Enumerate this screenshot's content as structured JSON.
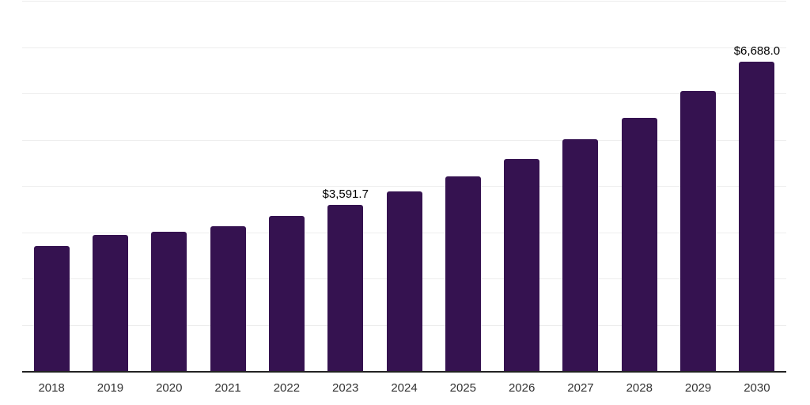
{
  "chart_data": {
    "type": "bar",
    "title": "",
    "xlabel": "",
    "ylabel": "",
    "categories": [
      "2018",
      "2019",
      "2020",
      "2021",
      "2022",
      "2023",
      "2024",
      "2025",
      "2026",
      "2027",
      "2028",
      "2029",
      "2030"
    ],
    "values": [
      2700,
      2940,
      3010,
      3130,
      3350,
      3591.7,
      3880,
      4205,
      4580,
      5010,
      5470,
      6060,
      6688.0
    ],
    "ylim": [
      0,
      8000
    ],
    "grid_step": 1000,
    "grid": "horizontal",
    "y_tick_labels_visible": false,
    "legend_position": "none",
    "annotations": [
      {
        "category": "2023",
        "text": "$3,591.7"
      },
      {
        "category": "2030",
        "text": "$6,688.0"
      }
    ],
    "colors": {
      "bar": "#351250",
      "axis_line": "#222222",
      "gridline": "#ededed",
      "tick_label": "#333333",
      "data_label": "#000000",
      "background": "#ffffff"
    }
  }
}
